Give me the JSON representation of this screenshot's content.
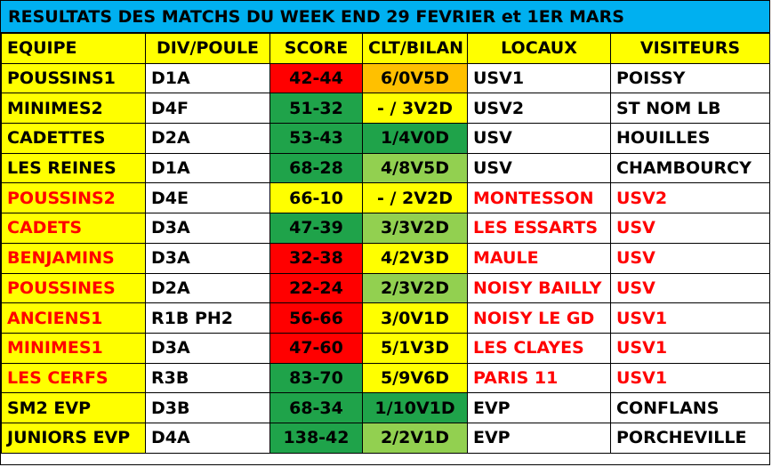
{
  "title": "RESULTATS DES MATCHS DU WEEK END 29 FEVRIER et 1ER MARS",
  "headers": {
    "team": "EQUIPE",
    "division": "DIV/POULE",
    "score": "SCORE",
    "ranking": "CLT/BILAN",
    "home": "LOCAUX",
    "away": "VISITEURS"
  },
  "colors": {
    "title_bg": "#00b0f0",
    "header_bg": "#ffff00",
    "loss_red": "#ff0000",
    "win_green": "#1fa34a",
    "light_green": "#92d050",
    "yellow": "#ffff00",
    "orange": "#ffc000",
    "away_text_red": "#ff0000"
  },
  "rows": [
    {
      "team": "POUSSINS1",
      "division": "D1A",
      "score": "42-44",
      "ranking": "6/0V5D",
      "home": "USV1",
      "away": "POISSY",
      "team_red": false,
      "score_bg": "#ff0000",
      "ranking_bg": "#ffc000"
    },
    {
      "team": "MINIMES2",
      "division": "D4F",
      "score": "51-32",
      "ranking": "- / 3V2D",
      "home": "USV2",
      "away": "ST NOM LB",
      "team_red": false,
      "score_bg": "#1fa34a",
      "ranking_bg": "#ffff00"
    },
    {
      "team": "CADETTES",
      "division": "D2A",
      "score": "53-43",
      "ranking": "1/4V0D",
      "home": "USV",
      "away": "HOUILLES",
      "team_red": false,
      "score_bg": "#1fa34a",
      "ranking_bg": "#1fa34a"
    },
    {
      "team": "LES REINES",
      "division": "D1A",
      "score": "68-28",
      "ranking": "4/8V5D",
      "home": "USV",
      "away": "CHAMBOURCY",
      "team_red": false,
      "score_bg": "#1fa34a",
      "ranking_bg": "#92d050"
    },
    {
      "team": "POUSSINS2",
      "division": "D4E",
      "score": "66-10",
      "ranking": "- / 2V2D",
      "home": "MONTESSON",
      "away": "USV2",
      "team_red": true,
      "score_bg": "#ffff00",
      "ranking_bg": "#ffff00"
    },
    {
      "team": "CADETS",
      "division": "D3A",
      "score": "47-39",
      "ranking": "3/3V2D",
      "home": "LES ESSARTS",
      "away": "USV",
      "team_red": true,
      "score_bg": "#1fa34a",
      "ranking_bg": "#92d050"
    },
    {
      "team": "BENJAMINS",
      "division": "D3A",
      "score": "32-38",
      "ranking": "4/2V3D",
      "home": "MAULE",
      "away": "USV",
      "team_red": true,
      "score_bg": "#ff0000",
      "ranking_bg": "#ffff00"
    },
    {
      "team": "POUSSINES",
      "division": "D2A",
      "score": "22-24",
      "ranking": "2/3V2D",
      "home": "NOISY BAILLY",
      "away": "USV",
      "team_red": true,
      "score_bg": "#ff0000",
      "ranking_bg": "#92d050"
    },
    {
      "team": "ANCIENS1",
      "division": "R1B PH2",
      "score": "56-66",
      "ranking": "3/0V1D",
      "home": "NOISY LE GD",
      "away": "USV1",
      "team_red": true,
      "score_bg": "#ff0000",
      "ranking_bg": "#ffff00"
    },
    {
      "team": "MINIMES1",
      "division": "D3A",
      "score": "47-60",
      "ranking": "5/1V3D",
      "home": "LES CLAYES",
      "away": "USV1",
      "team_red": true,
      "score_bg": "#ff0000",
      "ranking_bg": "#ffff00"
    },
    {
      "team": "LES CERFS",
      "division": "R3B",
      "score": "83-70",
      "ranking": "5/9V6D",
      "home": "PARIS 11",
      "away": "USV1",
      "team_red": true,
      "score_bg": "#1fa34a",
      "ranking_bg": "#ffff00"
    },
    {
      "team": "SM2 EVP",
      "division": "D3B",
      "score": "68-34",
      "ranking": "1/10V1D",
      "home": "EVP",
      "away": "CONFLANS",
      "team_red": false,
      "score_bg": "#1fa34a",
      "ranking_bg": "#1fa34a"
    },
    {
      "team": "JUNIORS EVP",
      "division": "D4A",
      "score": "138-42",
      "ranking": "2/2V1D",
      "home": "EVP",
      "away": "PORCHEVILLE",
      "team_red": false,
      "score_bg": "#1fa34a",
      "ranking_bg": "#92d050"
    }
  ]
}
